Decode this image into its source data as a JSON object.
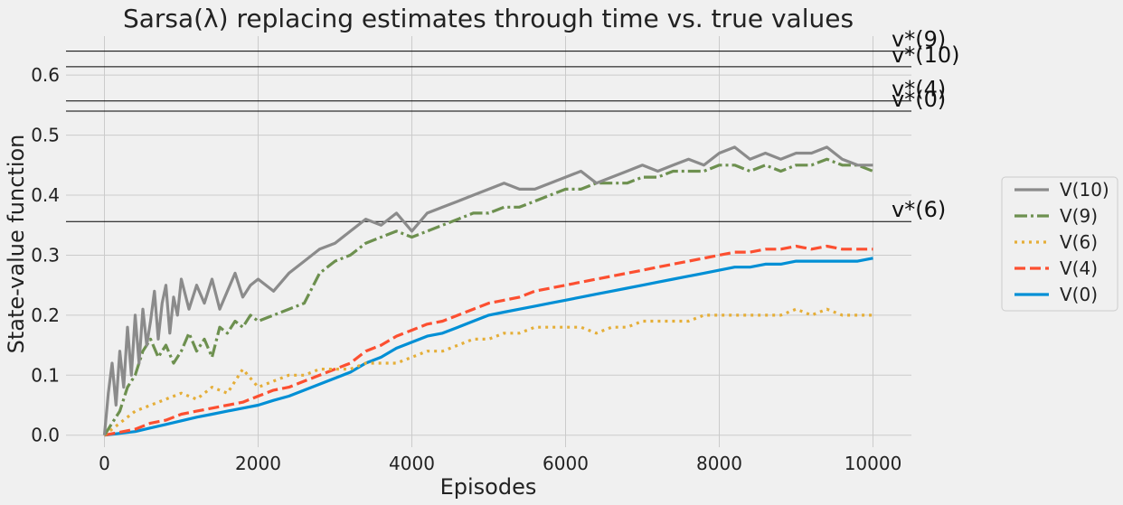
{
  "chart_data": {
    "type": "line",
    "title": "Sarsa(λ) replacing estimates through time vs. true values",
    "xlabel": "Episodes",
    "ylabel": "State-value function",
    "xlim": [
      -500,
      10500
    ],
    "ylim": [
      -0.02,
      0.665
    ],
    "xticks": [
      {
        "value": 0,
        "label": "0"
      },
      {
        "value": 2000,
        "label": "2000"
      },
      {
        "value": 4000,
        "label": "4000"
      },
      {
        "value": 6000,
        "label": "6000"
      },
      {
        "value": 8000,
        "label": "8000"
      },
      {
        "value": 10000,
        "label": "10000"
      }
    ],
    "yticks": [
      {
        "value": 0.0,
        "label": "0.0"
      },
      {
        "value": 0.1,
        "label": "0.1"
      },
      {
        "value": 0.2,
        "label": "0.2"
      },
      {
        "value": 0.3,
        "label": "0.3"
      },
      {
        "value": 0.4,
        "label": "0.4"
      },
      {
        "value": 0.5,
        "label": "0.5"
      },
      {
        "value": 0.6,
        "label": "0.6"
      }
    ],
    "grid": true,
    "legend_position": "right",
    "reference_lines": [
      {
        "label": "v*(9)",
        "value": 0.64
      },
      {
        "label": "v*(10)",
        "value": 0.614
      },
      {
        "label": "v*(4)",
        "value": 0.557
      },
      {
        "label": "v*(0)",
        "value": 0.54
      },
      {
        "label": "v*(6)",
        "value": 0.356
      }
    ],
    "series": [
      {
        "name": "V(10)",
        "color": "#8b8b8b",
        "dash": "solid",
        "x": [
          0,
          50,
          100,
          150,
          200,
          250,
          300,
          350,
          400,
          450,
          500,
          550,
          600,
          650,
          700,
          750,
          800,
          850,
          900,
          950,
          1000,
          1100,
          1200,
          1300,
          1400,
          1500,
          1600,
          1700,
          1800,
          1900,
          2000,
          2200,
          2400,
          2600,
          2800,
          3000,
          3200,
          3400,
          3600,
          3800,
          4000,
          4200,
          4400,
          4600,
          4800,
          5000,
          5200,
          5400,
          5600,
          5800,
          6000,
          6200,
          6400,
          6600,
          6800,
          7000,
          7200,
          7400,
          7600,
          7800,
          8000,
          8200,
          8400,
          8600,
          8800,
          9000,
          9200,
          9400,
          9600,
          9800,
          10000
        ],
        "y": [
          0.0,
          0.07,
          0.12,
          0.05,
          0.14,
          0.08,
          0.18,
          0.1,
          0.2,
          0.12,
          0.21,
          0.15,
          0.19,
          0.24,
          0.16,
          0.22,
          0.25,
          0.17,
          0.23,
          0.2,
          0.26,
          0.21,
          0.25,
          0.22,
          0.26,
          0.21,
          0.24,
          0.27,
          0.23,
          0.25,
          0.26,
          0.24,
          0.27,
          0.29,
          0.31,
          0.32,
          0.34,
          0.36,
          0.35,
          0.37,
          0.34,
          0.37,
          0.38,
          0.39,
          0.4,
          0.41,
          0.42,
          0.41,
          0.41,
          0.42,
          0.43,
          0.44,
          0.42,
          0.43,
          0.44,
          0.45,
          0.44,
          0.45,
          0.46,
          0.45,
          0.47,
          0.48,
          0.46,
          0.47,
          0.46,
          0.47,
          0.47,
          0.48,
          0.46,
          0.45,
          0.45
        ]
      },
      {
        "name": "V(9)",
        "color": "#6d904f",
        "dash": "dashdot",
        "x": [
          0,
          100,
          200,
          300,
          400,
          500,
          600,
          700,
          800,
          900,
          1000,
          1100,
          1200,
          1300,
          1400,
          1500,
          1600,
          1700,
          1800,
          1900,
          2000,
          2200,
          2400,
          2600,
          2800,
          3000,
          3200,
          3400,
          3600,
          3800,
          4000,
          4200,
          4400,
          4600,
          4800,
          5000,
          5200,
          5400,
          5600,
          5800,
          6000,
          6200,
          6400,
          6600,
          6800,
          7000,
          7200,
          7400,
          7600,
          7800,
          8000,
          8200,
          8400,
          8600,
          8800,
          9000,
          9200,
          9400,
          9600,
          9800,
          10000
        ],
        "y": [
          0.0,
          0.02,
          0.04,
          0.08,
          0.1,
          0.14,
          0.16,
          0.13,
          0.15,
          0.12,
          0.14,
          0.17,
          0.14,
          0.16,
          0.13,
          0.18,
          0.17,
          0.19,
          0.18,
          0.2,
          0.19,
          0.2,
          0.21,
          0.22,
          0.27,
          0.29,
          0.3,
          0.32,
          0.33,
          0.34,
          0.33,
          0.34,
          0.35,
          0.36,
          0.37,
          0.37,
          0.38,
          0.38,
          0.39,
          0.4,
          0.41,
          0.41,
          0.42,
          0.42,
          0.42,
          0.43,
          0.43,
          0.44,
          0.44,
          0.44,
          0.45,
          0.45,
          0.44,
          0.45,
          0.44,
          0.45,
          0.45,
          0.46,
          0.45,
          0.45,
          0.44
        ]
      },
      {
        "name": "V(6)",
        "color": "#e5ae38",
        "dash": "dotted",
        "x": [
          0,
          200,
          400,
          600,
          800,
          1000,
          1200,
          1400,
          1600,
          1800,
          2000,
          2200,
          2400,
          2600,
          2800,
          3000,
          3200,
          3400,
          3600,
          3800,
          4000,
          4200,
          4400,
          4600,
          4800,
          5000,
          5200,
          5400,
          5600,
          5800,
          6000,
          6200,
          6400,
          6600,
          6800,
          7000,
          7200,
          7400,
          7600,
          7800,
          8000,
          8200,
          8400,
          8600,
          8800,
          9000,
          9200,
          9400,
          9600,
          9800,
          10000
        ],
        "y": [
          0.0,
          0.02,
          0.04,
          0.05,
          0.06,
          0.07,
          0.06,
          0.08,
          0.07,
          0.11,
          0.08,
          0.09,
          0.1,
          0.1,
          0.11,
          0.11,
          0.11,
          0.12,
          0.12,
          0.12,
          0.13,
          0.14,
          0.14,
          0.15,
          0.16,
          0.16,
          0.17,
          0.17,
          0.18,
          0.18,
          0.18,
          0.18,
          0.17,
          0.18,
          0.18,
          0.19,
          0.19,
          0.19,
          0.19,
          0.2,
          0.2,
          0.2,
          0.2,
          0.2,
          0.2,
          0.21,
          0.2,
          0.21,
          0.2,
          0.2,
          0.2
        ]
      },
      {
        "name": "V(4)",
        "color": "#fc4f30",
        "dash": "dashed",
        "x": [
          0,
          200,
          400,
          600,
          800,
          1000,
          1200,
          1400,
          1600,
          1800,
          2000,
          2200,
          2400,
          2600,
          2800,
          3000,
          3200,
          3400,
          3600,
          3800,
          4000,
          4200,
          4400,
          4600,
          4800,
          5000,
          5200,
          5400,
          5600,
          5800,
          6000,
          6200,
          6400,
          6600,
          6800,
          7000,
          7200,
          7400,
          7600,
          7800,
          8000,
          8200,
          8400,
          8600,
          8800,
          9000,
          9200,
          9400,
          9600,
          9800,
          10000
        ],
        "y": [
          0.0,
          0.005,
          0.01,
          0.02,
          0.025,
          0.035,
          0.04,
          0.045,
          0.05,
          0.055,
          0.065,
          0.075,
          0.08,
          0.09,
          0.1,
          0.11,
          0.12,
          0.14,
          0.15,
          0.165,
          0.175,
          0.185,
          0.19,
          0.2,
          0.21,
          0.22,
          0.225,
          0.23,
          0.24,
          0.245,
          0.25,
          0.255,
          0.26,
          0.265,
          0.27,
          0.275,
          0.28,
          0.285,
          0.29,
          0.295,
          0.3,
          0.305,
          0.305,
          0.31,
          0.31,
          0.315,
          0.31,
          0.315,
          0.31,
          0.31,
          0.31
        ]
      },
      {
        "name": "V(0)",
        "color": "#008fd5",
        "dash": "solid",
        "x": [
          0,
          200,
          400,
          600,
          800,
          1000,
          1200,
          1400,
          1600,
          1800,
          2000,
          2200,
          2400,
          2600,
          2800,
          3000,
          3200,
          3400,
          3600,
          3800,
          4000,
          4200,
          4400,
          4600,
          4800,
          5000,
          5200,
          5400,
          5600,
          5800,
          6000,
          6200,
          6400,
          6600,
          6800,
          7000,
          7200,
          7400,
          7600,
          7800,
          8000,
          8200,
          8400,
          8600,
          8800,
          9000,
          9200,
          9400,
          9600,
          9800,
          10000
        ],
        "y": [
          0.0,
          0.003,
          0.006,
          0.012,
          0.018,
          0.024,
          0.03,
          0.035,
          0.04,
          0.045,
          0.05,
          0.058,
          0.065,
          0.075,
          0.085,
          0.095,
          0.105,
          0.12,
          0.13,
          0.145,
          0.155,
          0.165,
          0.17,
          0.18,
          0.19,
          0.2,
          0.205,
          0.21,
          0.215,
          0.22,
          0.225,
          0.23,
          0.235,
          0.24,
          0.245,
          0.25,
          0.255,
          0.26,
          0.265,
          0.27,
          0.275,
          0.28,
          0.28,
          0.285,
          0.285,
          0.29,
          0.29,
          0.29,
          0.29,
          0.29,
          0.295
        ]
      }
    ]
  }
}
